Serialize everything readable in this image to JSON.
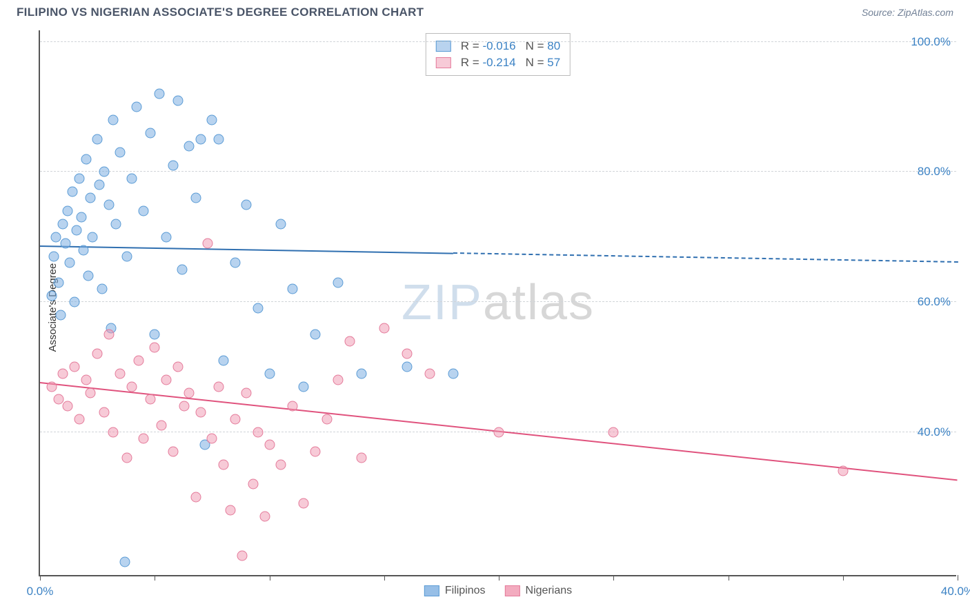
{
  "header": {
    "title": "FILIPINO VS NIGERIAN ASSOCIATE'S DEGREE CORRELATION CHART",
    "source_prefix": "Source: ",
    "source": "ZipAtlas.com"
  },
  "ylabel": "Associate's Degree",
  "watermark_a": "ZIP",
  "watermark_b": "atlas",
  "axes": {
    "xlim": [
      0,
      40
    ],
    "ylim": [
      18,
      102
    ],
    "ytick_values": [
      40,
      60,
      80,
      100
    ],
    "ytick_labels": [
      "40.0%",
      "60.0%",
      "80.0%",
      "100.0%"
    ],
    "xtick_values": [
      0,
      5,
      10,
      15,
      20,
      25,
      30,
      35,
      40
    ],
    "xtick_labels_shown": {
      "0": "0.0%",
      "40": "40.0%"
    },
    "grid_color": "#d0d4d8"
  },
  "series": [
    {
      "key": "filipinos",
      "label": "Filipinos",
      "fill": "rgba(125,175,225,0.55)",
      "stroke": "#5a9bd5",
      "line_color": "#2f6fb0",
      "R": "-0.016",
      "N": "80",
      "trend": {
        "x0": 0,
        "y0": 68.5,
        "x1": 40,
        "y1": 66.0,
        "solid_until_x": 18
      },
      "points": [
        [
          0.5,
          61
        ],
        [
          0.6,
          67
        ],
        [
          0.7,
          70
        ],
        [
          0.8,
          63
        ],
        [
          0.9,
          58
        ],
        [
          1.0,
          72
        ],
        [
          1.1,
          69
        ],
        [
          1.2,
          74
        ],
        [
          1.3,
          66
        ],
        [
          1.4,
          77
        ],
        [
          1.5,
          60
        ],
        [
          1.6,
          71
        ],
        [
          1.7,
          79
        ],
        [
          1.8,
          73
        ],
        [
          1.9,
          68
        ],
        [
          2.0,
          82
        ],
        [
          2.1,
          64
        ],
        [
          2.2,
          76
        ],
        [
          2.3,
          70
        ],
        [
          2.5,
          85
        ],
        [
          2.6,
          78
        ],
        [
          2.7,
          62
        ],
        [
          2.8,
          80
        ],
        [
          3.0,
          75
        ],
        [
          3.1,
          56
        ],
        [
          3.2,
          88
        ],
        [
          3.3,
          72
        ],
        [
          3.5,
          83
        ],
        [
          3.7,
          20
        ],
        [
          3.8,
          67
        ],
        [
          4.0,
          79
        ],
        [
          4.2,
          90
        ],
        [
          4.5,
          74
        ],
        [
          4.8,
          86
        ],
        [
          5.0,
          55
        ],
        [
          5.2,
          92
        ],
        [
          5.5,
          70
        ],
        [
          5.8,
          81
        ],
        [
          6.0,
          91
        ],
        [
          6.2,
          65
        ],
        [
          6.5,
          84
        ],
        [
          6.8,
          76
        ],
        [
          7.0,
          85
        ],
        [
          7.2,
          38
        ],
        [
          7.5,
          88
        ],
        [
          7.8,
          85
        ],
        [
          8.0,
          51
        ],
        [
          8.5,
          66
        ],
        [
          9.0,
          75
        ],
        [
          9.5,
          59
        ],
        [
          10.0,
          49
        ],
        [
          10.5,
          72
        ],
        [
          11.0,
          62
        ],
        [
          11.5,
          47
        ],
        [
          12.0,
          55
        ],
        [
          13.0,
          63
        ],
        [
          14.0,
          49
        ],
        [
          16.0,
          50
        ],
        [
          18.0,
          49
        ]
      ]
    },
    {
      "key": "nigerians",
      "label": "Nigerians",
      "fill": "rgba(240,150,175,0.5)",
      "stroke": "#e47a9a",
      "line_color": "#e0527d",
      "R": "-0.214",
      "N": "57",
      "trend": {
        "x0": 0,
        "y0": 47.5,
        "x1": 40,
        "y1": 32.5,
        "solid_until_x": 40
      },
      "points": [
        [
          0.5,
          47
        ],
        [
          0.8,
          45
        ],
        [
          1.0,
          49
        ],
        [
          1.2,
          44
        ],
        [
          1.5,
          50
        ],
        [
          1.7,
          42
        ],
        [
          2.0,
          48
        ],
        [
          2.2,
          46
        ],
        [
          2.5,
          52
        ],
        [
          2.8,
          43
        ],
        [
          3.0,
          55
        ],
        [
          3.2,
          40
        ],
        [
          3.5,
          49
        ],
        [
          3.8,
          36
        ],
        [
          4.0,
          47
        ],
        [
          4.3,
          51
        ],
        [
          4.5,
          39
        ],
        [
          4.8,
          45
        ],
        [
          5.0,
          53
        ],
        [
          5.3,
          41
        ],
        [
          5.5,
          48
        ],
        [
          5.8,
          37
        ],
        [
          6.0,
          50
        ],
        [
          6.3,
          44
        ],
        [
          6.5,
          46
        ],
        [
          6.8,
          30
        ],
        [
          7.0,
          43
        ],
        [
          7.3,
          69
        ],
        [
          7.5,
          39
        ],
        [
          7.8,
          47
        ],
        [
          8.0,
          35
        ],
        [
          8.3,
          28
        ],
        [
          8.5,
          42
        ],
        [
          8.8,
          21
        ],
        [
          9.0,
          46
        ],
        [
          9.3,
          32
        ],
        [
          9.5,
          40
        ],
        [
          9.8,
          27
        ],
        [
          10.0,
          38
        ],
        [
          10.5,
          35
        ],
        [
          11.0,
          44
        ],
        [
          11.5,
          29
        ],
        [
          12.0,
          37
        ],
        [
          12.5,
          42
        ],
        [
          13.0,
          48
        ],
        [
          13.5,
          54
        ],
        [
          14.0,
          36
        ],
        [
          15.0,
          56
        ],
        [
          16.0,
          52
        ],
        [
          17.0,
          49
        ],
        [
          20.0,
          40
        ],
        [
          25.0,
          40
        ],
        [
          35.0,
          34
        ]
      ]
    }
  ],
  "bottom_legend": [
    {
      "label": "Filipinos",
      "fill": "rgba(125,175,225,0.8)",
      "stroke": "#5a9bd5"
    },
    {
      "label": "Nigerians",
      "fill": "rgba(240,150,175,0.8)",
      "stroke": "#e47a9a"
    }
  ],
  "legend_text": {
    "R_prefix": "R = ",
    "N_prefix": "N = "
  }
}
